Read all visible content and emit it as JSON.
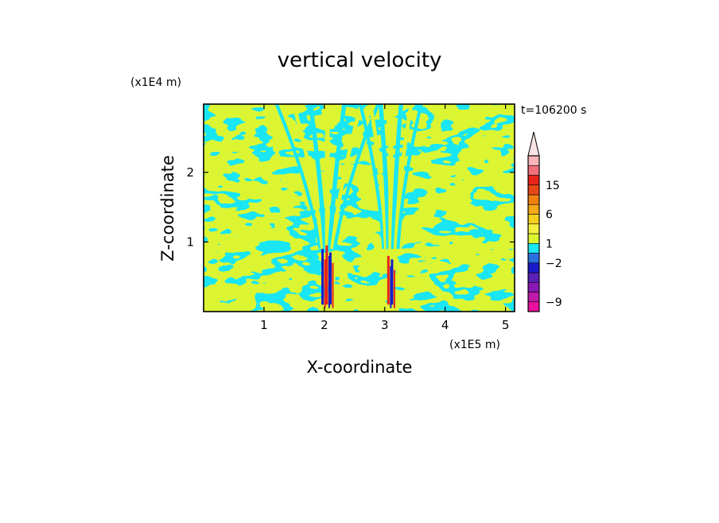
{
  "chart_data": {
    "type": "heatmap",
    "title": "vertical velocity",
    "xlabel": "X-coordinate",
    "ylabel": "Z-coordinate",
    "x_unit": "(x1E5 m)",
    "y_unit": "(x1E4 m)",
    "timestamp": "t=106200 s",
    "xlim": [
      0,
      5.15
    ],
    "ylim": [
      0,
      2.98
    ],
    "x_ticks": [
      1,
      2,
      3,
      4,
      5
    ],
    "y_ticks": [
      1,
      2
    ],
    "field_colors": {
      "positive_weak": "#dcf530",
      "negative_weak": "#19e6f2",
      "strong_up": "#e8231a",
      "strong_down": "#1a1ac8"
    },
    "colorbar": {
      "labels": [
        {
          "text": "15",
          "value": 15
        },
        {
          "text": "6",
          "value": 6
        },
        {
          "text": "1",
          "value": 1
        },
        {
          "text": "−2",
          "value": -2
        },
        {
          "text": "−9",
          "value": -9
        }
      ],
      "levels_colors": [
        "#e8109c",
        "#c01aa8",
        "#8a18b4",
        "#5a20b8",
        "#1a1ac8",
        "#2a6ee0",
        "#19e6f2",
        "#dcf530",
        "#f5f040",
        "#f5d020",
        "#f5a818",
        "#f08010",
        "#e84818",
        "#e8231a",
        "#f0707a",
        "#f8b4b8"
      ],
      "top_extension": "#f8e4e4"
    }
  }
}
